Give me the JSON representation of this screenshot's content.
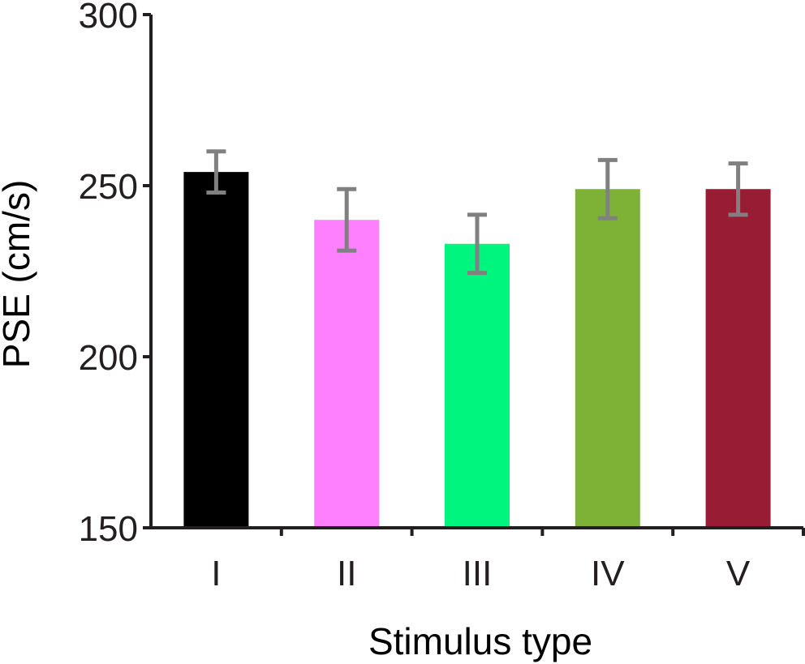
{
  "chart_data": {
    "type": "bar",
    "title": "",
    "xlabel": "Stimulus type",
    "ylabel": "PSE (cm/s)",
    "ylim": [
      150,
      300
    ],
    "yticks": [
      150,
      200,
      250,
      300
    ],
    "grid": false,
    "categories": [
      "I",
      "II",
      "III",
      "IV",
      "V"
    ],
    "values": [
      254,
      240,
      233,
      249,
      249
    ],
    "error": [
      6,
      9,
      8.5,
      8.5,
      7.5
    ],
    "colors": [
      "#000000",
      "#ff80ff",
      "#00f57f",
      "#7db236",
      "#981d34"
    ],
    "error_color": "#808080"
  }
}
